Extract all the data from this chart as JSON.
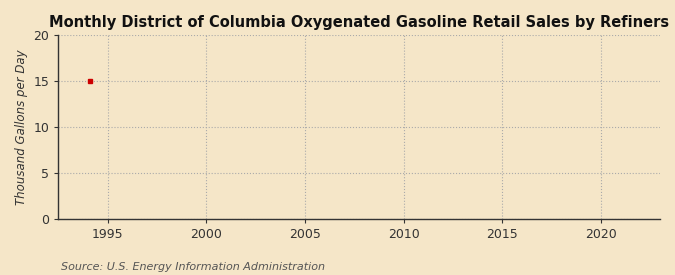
{
  "title": "Monthly District of Columbia Oxygenated Gasoline Retail Sales by Refiners",
  "ylabel": "Thousand Gallons per Day",
  "source": "Source: U.S. Energy Information Administration",
  "background_color": "#f5e6c8",
  "plot_bg_color": "#f5e6c8",
  "data_point_x": 1994.08,
  "data_point_y": 15.0,
  "data_color": "#cc0000",
  "data_marker": "s",
  "data_markersize": 3,
  "xlim": [
    1992.5,
    2023
  ],
  "ylim": [
    0,
    20
  ],
  "xticks": [
    1995,
    2000,
    2005,
    2010,
    2015,
    2020
  ],
  "yticks": [
    0,
    5,
    10,
    15,
    20
  ],
  "grid_color": "#aaaaaa",
  "grid_linestyle": ":",
  "grid_linewidth": 0.8,
  "title_fontsize": 10.5,
  "title_fontweight": "bold",
  "label_fontsize": 8.5,
  "tick_fontsize": 9,
  "source_fontsize": 8,
  "spine_color": "#333333",
  "spine_linewidth": 1.0
}
